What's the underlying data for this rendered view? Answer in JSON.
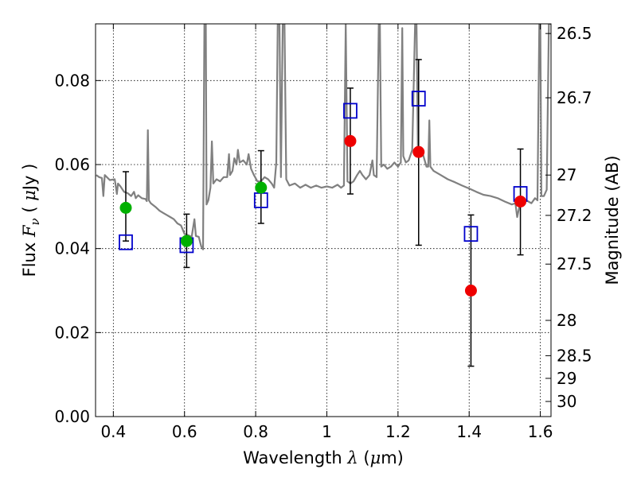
{
  "chart_data": {
    "type": "scatter",
    "title": "",
    "xlabel": {
      "prefix": "Wavelength  ",
      "symbol": "λ",
      "unit_open": " (",
      "unit_mu": "μ",
      "unit_close": "m)"
    },
    "ylabel": {
      "prefix": "Flux  ",
      "symbol": "F",
      "subscript": "ν",
      "unit_open": " (  ",
      "unit_mu": "μ",
      "unit_close": "Jy )"
    },
    "y2label": "Magnitude (AB)",
    "xlim": [
      0.35,
      1.63
    ],
    "ylim": [
      0.0,
      0.0935
    ],
    "grid": true,
    "xticks": [
      0.4,
      0.6,
      0.8,
      1.0,
      1.2,
      1.4,
      1.6
    ],
    "xtick_labels": [
      "0.4",
      "0.6",
      "0.8",
      "1",
      "1.2",
      "1.4",
      "1.6"
    ],
    "yticks": [
      0.0,
      0.02,
      0.04,
      0.06,
      0.08
    ],
    "ytick_labels": [
      "0.00",
      "0.02",
      "0.04",
      "0.06",
      "0.08"
    ],
    "mag_ticks": [
      {
        "label": "26.5",
        "flux": 0.0912
      },
      {
        "label": "26.7",
        "flux": 0.0759
      },
      {
        "label": "27",
        "flux": 0.0575
      },
      {
        "label": "27.2",
        "flux": 0.0479
      },
      {
        "label": "27.5",
        "flux": 0.0363
      },
      {
        "label": "28",
        "flux": 0.0229
      },
      {
        "label": "28.5",
        "flux": 0.0145
      },
      {
        "label": "29",
        "flux": 0.0091
      },
      {
        "label": "30",
        "flux": 0.0036
      }
    ],
    "colors": {
      "sed": "#808080",
      "green": "#00b000",
      "red": "#ee0000",
      "model": "#0000cc",
      "err": "#000000"
    },
    "sed": [
      [
        0.352,
        0.0575
      ],
      [
        0.36,
        0.057
      ],
      [
        0.368,
        0.0568
      ],
      [
        0.372,
        0.0525
      ],
      [
        0.376,
        0.0575
      ],
      [
        0.39,
        0.0563
      ],
      [
        0.404,
        0.0565
      ],
      [
        0.41,
        0.053
      ],
      [
        0.413,
        0.0555
      ],
      [
        0.42,
        0.0548
      ],
      [
        0.43,
        0.0535
      ],
      [
        0.44,
        0.0532
      ],
      [
        0.45,
        0.0525
      ],
      [
        0.458,
        0.0535
      ],
      [
        0.463,
        0.052
      ],
      [
        0.47,
        0.0527
      ],
      [
        0.48,
        0.052
      ],
      [
        0.49,
        0.0518
      ],
      [
        0.494,
        0.0513
      ],
      [
        0.497,
        0.0682
      ],
      [
        0.5,
        0.0515
      ],
      [
        0.505,
        0.0508
      ],
      [
        0.52,
        0.0498
      ],
      [
        0.53,
        0.049
      ],
      [
        0.54,
        0.0485
      ],
      [
        0.55,
        0.048
      ],
      [
        0.56,
        0.0475
      ],
      [
        0.57,
        0.047
      ],
      [
        0.58,
        0.046
      ],
      [
        0.59,
        0.0455
      ],
      [
        0.6,
        0.0435
      ],
      [
        0.61,
        0.0432
      ],
      [
        0.62,
        0.0428
      ],
      [
        0.628,
        0.047
      ],
      [
        0.632,
        0.043
      ],
      [
        0.64,
        0.0428
      ],
      [
        0.647,
        0.0405
      ],
      [
        0.652,
        0.0398
      ],
      [
        0.656,
        0.0935
      ],
      [
        0.66,
        0.0935
      ],
      [
        0.662,
        0.0505
      ],
      [
        0.667,
        0.0515
      ],
      [
        0.673,
        0.0545
      ],
      [
        0.677,
        0.0655
      ],
      [
        0.681,
        0.0555
      ],
      [
        0.69,
        0.0565
      ],
      [
        0.7,
        0.056
      ],
      [
        0.71,
        0.057
      ],
      [
        0.72,
        0.057
      ],
      [
        0.725,
        0.0625
      ],
      [
        0.728,
        0.0575
      ],
      [
        0.735,
        0.0585
      ],
      [
        0.74,
        0.0615
      ],
      [
        0.746,
        0.06
      ],
      [
        0.75,
        0.0635
      ],
      [
        0.755,
        0.0605
      ],
      [
        0.765,
        0.061
      ],
      [
        0.775,
        0.06
      ],
      [
        0.78,
        0.0625
      ],
      [
        0.787,
        0.059
      ],
      [
        0.795,
        0.0575
      ],
      [
        0.805,
        0.056
      ],
      [
        0.815,
        0.056
      ],
      [
        0.825,
        0.057
      ],
      [
        0.835,
        0.0565
      ],
      [
        0.845,
        0.0555
      ],
      [
        0.852,
        0.0545
      ],
      [
        0.858,
        0.0605
      ],
      [
        0.862,
        0.0935
      ],
      [
        0.867,
        0.0935
      ],
      [
        0.871,
        0.057
      ],
      [
        0.876,
        0.0935
      ],
      [
        0.881,
        0.0935
      ],
      [
        0.886,
        0.0565
      ],
      [
        0.895,
        0.055
      ],
      [
        0.91,
        0.0555
      ],
      [
        0.925,
        0.0545
      ],
      [
        0.94,
        0.0552
      ],
      [
        0.955,
        0.0545
      ],
      [
        0.97,
        0.055
      ],
      [
        0.985,
        0.0545
      ],
      [
        1.0,
        0.0548
      ],
      [
        1.015,
        0.0545
      ],
      [
        1.03,
        0.0552
      ],
      [
        1.04,
        0.0545
      ],
      [
        1.048,
        0.055
      ],
      [
        1.053,
        0.0935
      ],
      [
        1.058,
        0.056
      ],
      [
        1.066,
        0.0555
      ],
      [
        1.075,
        0.056
      ],
      [
        1.085,
        0.0575
      ],
      [
        1.093,
        0.0585
      ],
      [
        1.1,
        0.0575
      ],
      [
        1.11,
        0.0565
      ],
      [
        1.12,
        0.0575
      ],
      [
        1.128,
        0.061
      ],
      [
        1.132,
        0.0575
      ],
      [
        1.14,
        0.057
      ],
      [
        1.146,
        0.0935
      ],
      [
        1.149,
        0.0935
      ],
      [
        1.153,
        0.0595
      ],
      [
        1.16,
        0.06
      ],
      [
        1.17,
        0.059
      ],
      [
        1.18,
        0.0595
      ],
      [
        1.19,
        0.0605
      ],
      [
        1.2,
        0.0595
      ],
      [
        1.208,
        0.0605
      ],
      [
        1.212,
        0.0925
      ],
      [
        1.215,
        0.062
      ],
      [
        1.222,
        0.0605
      ],
      [
        1.23,
        0.061
      ],
      [
        1.24,
        0.0635
      ],
      [
        1.248,
        0.0935
      ],
      [
        1.252,
        0.0935
      ],
      [
        1.256,
        0.063
      ],
      [
        1.27,
        0.0625
      ],
      [
        1.28,
        0.0595
      ],
      [
        1.285,
        0.0595
      ],
      [
        1.288,
        0.0705
      ],
      [
        1.291,
        0.0595
      ],
      [
        1.3,
        0.0585
      ],
      [
        1.31,
        0.058
      ],
      [
        1.32,
        0.0575
      ],
      [
        1.34,
        0.0565
      ],
      [
        1.36,
        0.0558
      ],
      [
        1.38,
        0.055
      ],
      [
        1.4,
        0.0543
      ],
      [
        1.42,
        0.0535
      ],
      [
        1.44,
        0.0528
      ],
      [
        1.46,
        0.0525
      ],
      [
        1.48,
        0.052
      ],
      [
        1.5,
        0.0512
      ],
      [
        1.52,
        0.0505
      ],
      [
        1.53,
        0.0508
      ],
      [
        1.535,
        0.0475
      ],
      [
        1.545,
        0.0515
      ],
      [
        1.56,
        0.0515
      ],
      [
        1.575,
        0.0508
      ],
      [
        1.585,
        0.052
      ],
      [
        1.592,
        0.0515
      ],
      [
        1.597,
        0.0935
      ],
      [
        1.6,
        0.0935
      ],
      [
        1.603,
        0.0525
      ],
      [
        1.61,
        0.0525
      ],
      [
        1.618,
        0.054
      ],
      [
        1.624,
        0.0935
      ],
      [
        1.63,
        0.0935
      ]
    ],
    "observed": [
      {
        "x": 0.435,
        "y": 0.0497,
        "color": "green",
        "err": [
          0.0418,
          0.0583
        ]
      },
      {
        "x": 0.606,
        "y": 0.0418,
        "color": "green",
        "err": [
          0.0355,
          0.0482
        ]
      },
      {
        "x": 0.815,
        "y": 0.0545,
        "color": "green",
        "err": [
          0.046,
          0.0633
        ]
      },
      {
        "x": 1.066,
        "y": 0.0656,
        "color": "red",
        "err": [
          0.053,
          0.0782
        ]
      },
      {
        "x": 1.258,
        "y": 0.063,
        "color": "red",
        "err": [
          0.0408,
          0.085
        ]
      },
      {
        "x": 1.405,
        "y": 0.03,
        "color": "red",
        "err": [
          0.012,
          0.048
        ]
      },
      {
        "x": 1.544,
        "y": 0.0512,
        "color": "red",
        "err": [
          0.0385,
          0.0637
        ]
      }
    ],
    "model": [
      {
        "x": 0.435,
        "y": 0.0415
      },
      {
        "x": 0.606,
        "y": 0.0408
      },
      {
        "x": 0.815,
        "y": 0.0515
      },
      {
        "x": 1.066,
        "y": 0.0728
      },
      {
        "x": 1.258,
        "y": 0.0757
      },
      {
        "x": 1.405,
        "y": 0.0435
      },
      {
        "x": 1.544,
        "y": 0.053
      }
    ]
  }
}
